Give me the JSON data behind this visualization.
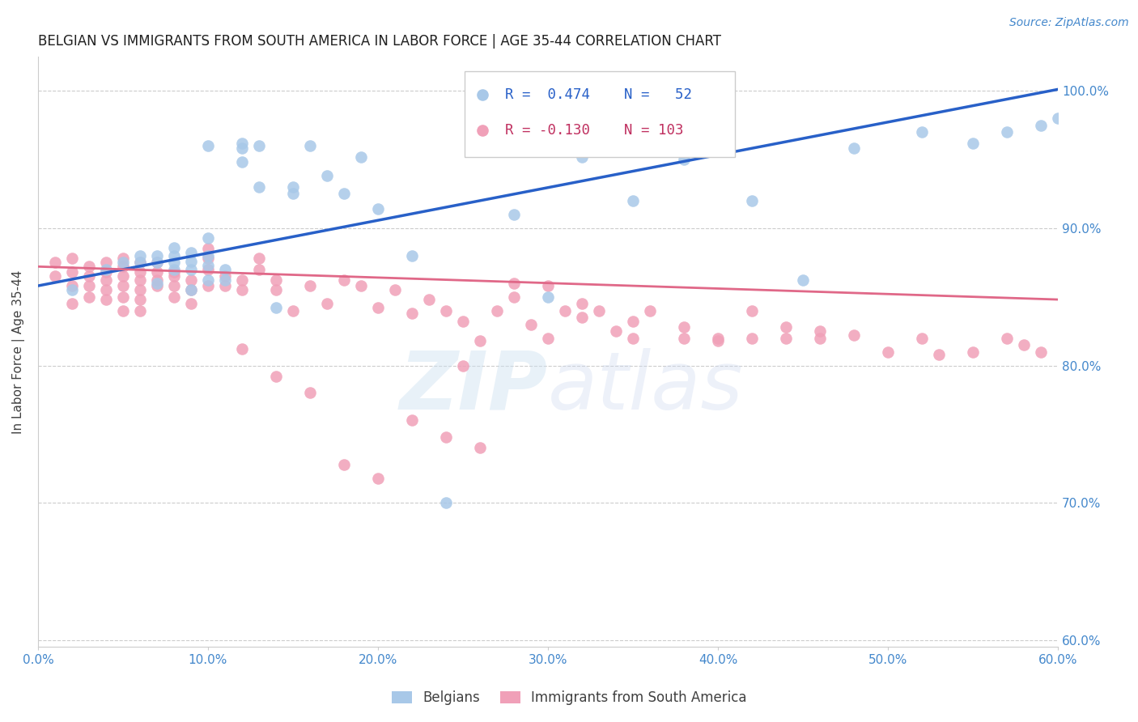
{
  "title": "BELGIAN VS IMMIGRANTS FROM SOUTH AMERICA IN LABOR FORCE | AGE 35-44 CORRELATION CHART",
  "source": "Source: ZipAtlas.com",
  "ylabel": "In Labor Force | Age 35-44",
  "xlim": [
    0.0,
    0.6
  ],
  "ylim": [
    0.595,
    1.025
  ],
  "xticks": [
    0.0,
    0.1,
    0.2,
    0.3,
    0.4,
    0.5,
    0.6
  ],
  "yticks": [
    0.6,
    0.7,
    0.8,
    0.9,
    1.0
  ],
  "ytick_labels_right": [
    "60.0%",
    "70.0%",
    "80.0%",
    "90.0%",
    "100.0%"
  ],
  "xtick_labels": [
    "0.0%",
    "10.0%",
    "20.0%",
    "30.0%",
    "40.0%",
    "50.0%",
    "60.0%"
  ],
  "color_belgian": "#a8c8e8",
  "color_immigrant": "#f0a0b8",
  "color_line_belgian": "#2860c8",
  "color_line_immigrant": "#e06888",
  "color_axis_ticks": "#4488cc",
  "color_grid": "#cccccc",
  "background_color": "#ffffff",
  "belgian_x": [
    0.02,
    0.04,
    0.05,
    0.06,
    0.06,
    0.07,
    0.07,
    0.07,
    0.08,
    0.08,
    0.08,
    0.08,
    0.09,
    0.09,
    0.09,
    0.09,
    0.1,
    0.1,
    0.1,
    0.1,
    0.11,
    0.11,
    0.12,
    0.12,
    0.12,
    0.13,
    0.14,
    0.15,
    0.15,
    0.16,
    0.17,
    0.18,
    0.19,
    0.2,
    0.22,
    0.24,
    0.26,
    0.28,
    0.3,
    0.32,
    0.35,
    0.38,
    0.42,
    0.45,
    0.48,
    0.52,
    0.55,
    0.57,
    0.59,
    0.6,
    0.1,
    0.13
  ],
  "belgian_y": [
    0.855,
    0.87,
    0.875,
    0.875,
    0.88,
    0.86,
    0.875,
    0.88,
    0.87,
    0.875,
    0.88,
    0.886,
    0.855,
    0.87,
    0.876,
    0.882,
    0.862,
    0.873,
    0.88,
    0.893,
    0.862,
    0.87,
    0.948,
    0.958,
    0.962,
    0.93,
    0.842,
    0.925,
    0.93,
    0.96,
    0.938,
    0.925,
    0.952,
    0.914,
    0.88,
    0.7,
    0.958,
    0.91,
    0.85,
    0.952,
    0.92,
    0.95,
    0.92,
    0.862,
    0.958,
    0.97,
    0.962,
    0.97,
    0.975,
    0.98,
    0.96,
    0.96
  ],
  "immigrant_x": [
    0.01,
    0.01,
    0.02,
    0.02,
    0.02,
    0.02,
    0.03,
    0.03,
    0.03,
    0.03,
    0.04,
    0.04,
    0.04,
    0.04,
    0.04,
    0.05,
    0.05,
    0.05,
    0.05,
    0.05,
    0.05,
    0.06,
    0.06,
    0.06,
    0.06,
    0.06,
    0.06,
    0.07,
    0.07,
    0.07,
    0.07,
    0.08,
    0.08,
    0.08,
    0.09,
    0.09,
    0.09,
    0.1,
    0.1,
    0.1,
    0.11,
    0.11,
    0.12,
    0.12,
    0.13,
    0.13,
    0.14,
    0.14,
    0.15,
    0.16,
    0.17,
    0.18,
    0.19,
    0.2,
    0.21,
    0.22,
    0.23,
    0.24,
    0.25,
    0.26,
    0.27,
    0.28,
    0.29,
    0.3,
    0.31,
    0.32,
    0.33,
    0.34,
    0.35,
    0.36,
    0.38,
    0.4,
    0.42,
    0.44,
    0.46,
    0.48,
    0.5,
    0.52,
    0.53,
    0.55,
    0.57,
    0.58,
    0.59,
    0.25,
    0.28,
    0.3,
    0.32,
    0.35,
    0.38,
    0.4,
    0.18,
    0.2,
    0.22,
    0.24,
    0.26,
    0.14,
    0.16,
    0.12,
    0.1,
    0.08,
    0.42,
    0.44,
    0.46
  ],
  "immigrant_y": [
    0.865,
    0.875,
    0.845,
    0.858,
    0.868,
    0.878,
    0.85,
    0.858,
    0.865,
    0.872,
    0.848,
    0.855,
    0.862,
    0.868,
    0.875,
    0.84,
    0.85,
    0.858,
    0.865,
    0.872,
    0.878,
    0.84,
    0.848,
    0.855,
    0.862,
    0.868,
    0.875,
    0.858,
    0.862,
    0.868,
    0.875,
    0.85,
    0.858,
    0.865,
    0.845,
    0.855,
    0.862,
    0.87,
    0.878,
    0.885,
    0.858,
    0.865,
    0.855,
    0.862,
    0.87,
    0.878,
    0.855,
    0.862,
    0.84,
    0.858,
    0.845,
    0.862,
    0.858,
    0.842,
    0.855,
    0.838,
    0.848,
    0.84,
    0.832,
    0.818,
    0.84,
    0.85,
    0.83,
    0.82,
    0.84,
    0.835,
    0.84,
    0.825,
    0.82,
    0.84,
    0.82,
    0.82,
    0.82,
    0.82,
    0.825,
    0.822,
    0.81,
    0.82,
    0.808,
    0.81,
    0.82,
    0.815,
    0.81,
    0.8,
    0.86,
    0.858,
    0.845,
    0.832,
    0.828,
    0.818,
    0.728,
    0.718,
    0.76,
    0.748,
    0.74,
    0.792,
    0.78,
    0.812,
    0.858,
    0.868,
    0.84,
    0.828,
    0.82
  ],
  "line_belgian_x0": 0.0,
  "line_belgian_x1": 0.6,
  "line_belgian_y0": 0.858,
  "line_belgian_y1": 1.001,
  "line_immigrant_x0": 0.0,
  "line_immigrant_x1": 0.6,
  "line_immigrant_y0": 0.872,
  "line_immigrant_y1": 0.848
}
